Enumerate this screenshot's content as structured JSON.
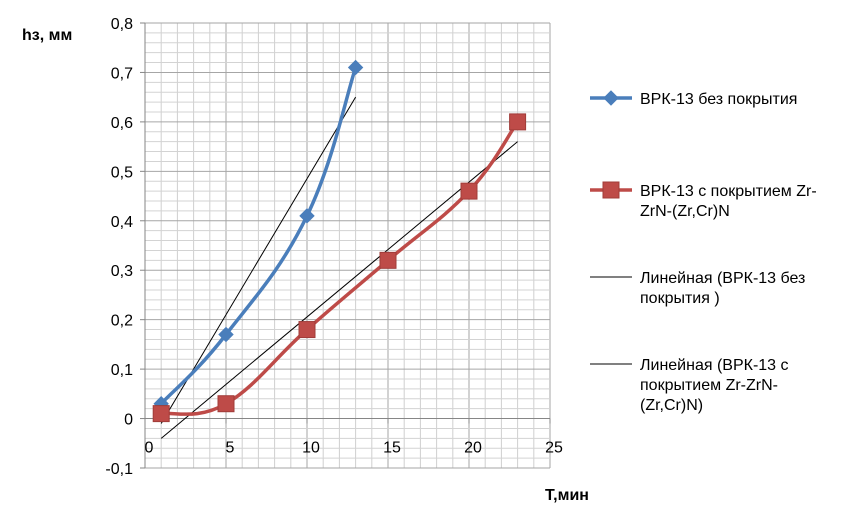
{
  "chart_data": {
    "type": "line",
    "xlabel": "Т,мин",
    "ylabel": "hз, мм",
    "xlim": [
      0,
      25
    ],
    "ylim": [
      -0.1,
      0.8
    ],
    "x_ticks": [
      "0",
      "5",
      "10",
      "15",
      "20",
      "25"
    ],
    "y_ticks": [
      "-0,1",
      "0",
      "0,1",
      "0,2",
      "0,3",
      "0,4",
      "0,5",
      "0,6",
      "0,7",
      "0,8"
    ],
    "grid": true,
    "legend_position": "right",
    "series": [
      {
        "name": "ВРК-13 без покрытия",
        "color": "#4a7ebb",
        "marker": "diamond",
        "x": [
          1,
          5,
          10,
          13
        ],
        "y": [
          0.03,
          0.17,
          0.41,
          0.71
        ]
      },
      {
        "name": "ВРК-13 с покрытием Zr-ZrN-(Zr,Cr)N",
        "color": "#be4b48",
        "marker": "square",
        "x": [
          1,
          5,
          10,
          15,
          20,
          23
        ],
        "y": [
          0.01,
          0.03,
          0.18,
          0.32,
          0.46,
          0.6
        ]
      }
    ],
    "trendlines": [
      {
        "name": "Линейная (ВРК-13 без покрытия )",
        "color": "#000000",
        "x": [
          1,
          13
        ],
        "y": [
          -0.01,
          0.65
        ]
      },
      {
        "name": "Линейная (ВРК-13 с покрытием Zr-ZrN-(Zr,Cr)N)",
        "color": "#000000",
        "x": [
          1,
          23
        ],
        "y": [
          -0.04,
          0.56
        ]
      }
    ]
  },
  "legend": [
    {
      "kind": "series",
      "ref": 0,
      "lines": [
        "ВРК-13 без покрытия"
      ]
    },
    {
      "kind": "series",
      "ref": 1,
      "lines": [
        "ВРК-13 с покрытием Zr-",
        "ZrN-(Zr,Cr)N"
      ]
    },
    {
      "kind": "trend",
      "ref": 0,
      "lines": [
        "Линейная (ВРК-13 без",
        "покрытия )"
      ]
    },
    {
      "kind": "trend",
      "ref": 1,
      "lines": [
        "Линейная (ВРК-13 с",
        "покрытием Zr-ZrN-",
        "(Zr,Cr)N)"
      ]
    }
  ]
}
